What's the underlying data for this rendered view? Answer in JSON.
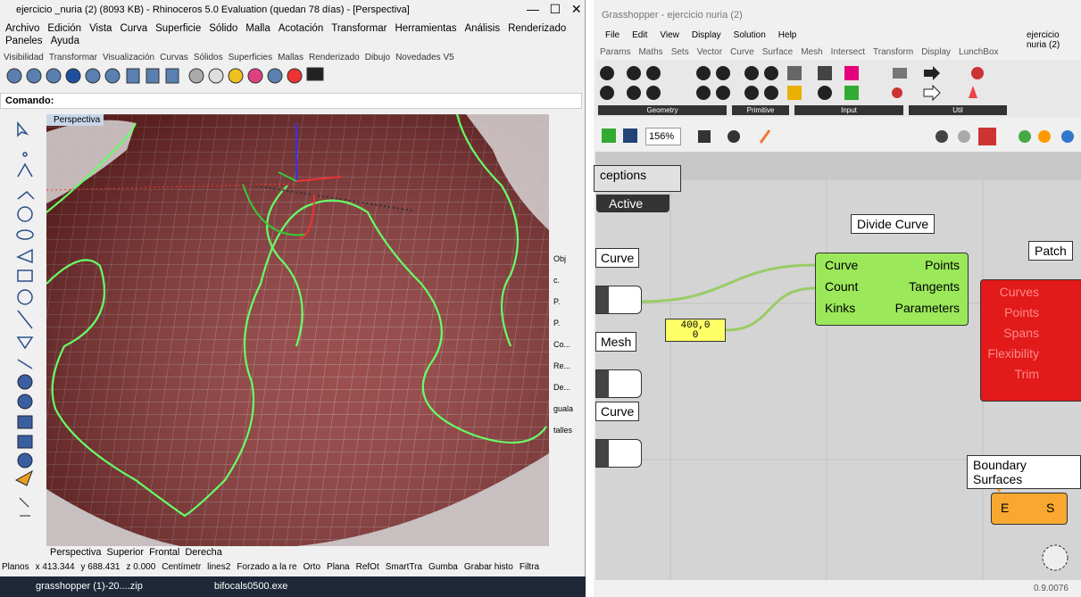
{
  "rhino": {
    "title": "ejercicio _nuria (2) (8093 KB) - Rhinoceros 5.0 Evaluation (quedan 78 días) - [Perspectiva]",
    "menu": [
      "Archivo",
      "Edición",
      "Vista",
      "Curva",
      "Superficie",
      "Sólido",
      "Malla",
      "Acotación",
      "Transformar",
      "Herramientas",
      "Análisis",
      "Renderizado",
      "Paneles",
      "Ayuda"
    ],
    "tabs": [
      "Visibilidad",
      "Transformar",
      "Visualización",
      "Curvas",
      "Sólidos",
      "Superficies",
      "Mallas",
      "Renderizado",
      "Dibujo",
      "Novedades V5"
    ],
    "command_label": "Comando:",
    "viewport_label": "Perspectiva",
    "side_panel": [
      "Obj",
      "c.",
      "P.",
      "P.",
      "Co...",
      "Re...",
      "De...",
      "guala",
      "talles"
    ],
    "viewport_tabs": [
      "Perspectiva",
      "Superior",
      "Frontal",
      "Derecha"
    ],
    "status": [
      "Planos",
      "x 413.344",
      "y 688.431",
      "z 0.000",
      "Centímetr",
      "lines2",
      "Forzado a la re",
      "Orto",
      "Plana",
      "RefOt",
      "SmartTra",
      "Gumba",
      "Grabar histo",
      "Filtra"
    ],
    "taskbar": [
      "grasshopper (1)-20....zip",
      "bifocals0500.exe"
    ]
  },
  "grasshopper": {
    "title": "Grasshopper - ejercicio nuria (2)",
    "menu": [
      "File",
      "Edit",
      "View",
      "Display",
      "Solution",
      "Help"
    ],
    "document": "ejercicio nuria (2)",
    "tabs": [
      "Params",
      "Maths",
      "Sets",
      "Vector",
      "Curve",
      "Surface",
      "Mesh",
      "Intersect",
      "Transform",
      "Display",
      "LunchBox"
    ],
    "groups": [
      "Geometry",
      "Primitive",
      "Input",
      "Util"
    ],
    "zoom": "156%",
    "exceptions_group": "ceptions",
    "active_label": "Active",
    "divide_curve": {
      "name": "Divide Curve",
      "inputs": [
        "Curve",
        "Count",
        "Kinks"
      ],
      "outputs": [
        "Points",
        "Tangents",
        "Parameters"
      ]
    },
    "params": [
      "Curve",
      "Mesh",
      "Curve"
    ],
    "panel": [
      "400,0",
      "0"
    ],
    "patch": {
      "name": "Patch",
      "inputs": [
        "Curves",
        "Points",
        "Spans",
        "Flexibility",
        "Trim"
      ]
    },
    "boundary": {
      "name": "Boundary Surfaces",
      "input": "E",
      "output": "S"
    },
    "version": "0.9.0076"
  }
}
